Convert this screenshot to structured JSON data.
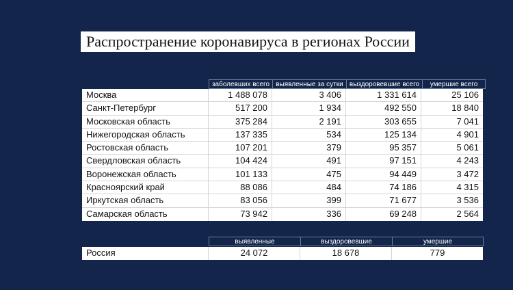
{
  "title": "Распространение коронавируса в регионах России",
  "regions_table": {
    "headers": [
      "заболевших всего",
      "выявленные за сутки",
      "выздоровевшие всего",
      "умершие всего"
    ],
    "rows": [
      {
        "region": "Москва",
        "total": "1 488 078",
        "daily": "3 406",
        "recovered": "1 331 614",
        "deaths": "25 106"
      },
      {
        "region": "Санкт-Петербург",
        "total": "517 200",
        "daily": "1 934",
        "recovered": "492 550",
        "deaths": "18 840"
      },
      {
        "region": "Московская область",
        "total": "375 284",
        "daily": "2 191",
        "recovered": "303 655",
        "deaths": "7 041"
      },
      {
        "region": "Нижегородская область",
        "total": "137 335",
        "daily": "534",
        "recovered": "125 134",
        "deaths": "4 901"
      },
      {
        "region": "Ростовская область",
        "total": "107 201",
        "daily": "379",
        "recovered": "95 357",
        "deaths": "5 061"
      },
      {
        "region": "Свердловская область",
        "total": "104 424",
        "daily": "491",
        "recovered": "97 151",
        "deaths": "4 243"
      },
      {
        "region": "Воронежская область",
        "total": "101 133",
        "daily": "475",
        "recovered": "94 449",
        "deaths": "3 472"
      },
      {
        "region": "Красноярский край",
        "total": "88 086",
        "daily": "484",
        "recovered": "74 186",
        "deaths": "4 315"
      },
      {
        "region": "Иркутская область",
        "total": "83 056",
        "daily": "399",
        "recovered": "71 677",
        "deaths": "3 536"
      },
      {
        "region": "Самарская область",
        "total": "73 942",
        "daily": "336",
        "recovered": "69 248",
        "deaths": "2 564"
      }
    ]
  },
  "russia_table": {
    "headers": [
      "выявленные",
      "выздоровевшие",
      "умершие"
    ],
    "row": {
      "region": "Россия",
      "detected": "24 072",
      "recovered": "18 678",
      "deaths": "779"
    }
  },
  "colors": {
    "background": "#13254a",
    "table_bg": "#ffffff",
    "header_border": "#6d7d9c"
  }
}
